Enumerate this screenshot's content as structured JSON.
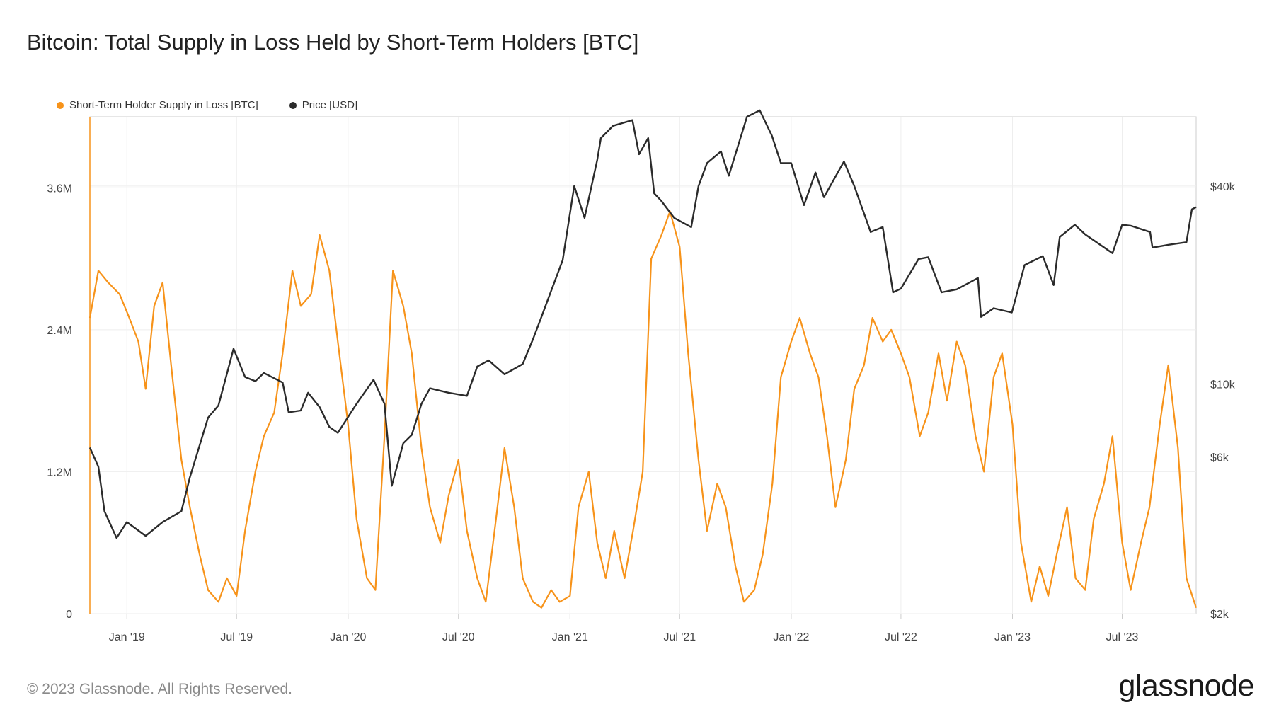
{
  "title": "Bitcoin: Total Supply in Loss Held by Short-Term Holders [BTC]",
  "footer": "© 2023 Glassnode. All Rights Reserved.",
  "brand": "glassnode",
  "colors": {
    "supply": "#f7931a",
    "price": "#2b2b2b",
    "grid": "#eeeeee",
    "axis": "#cccccc"
  },
  "chart_data": {
    "type": "line",
    "legend_position": "top-left",
    "grid": true,
    "x_range": [
      "2018-11-01",
      "2023-10-31"
    ],
    "x_ticks": [
      {
        "date": "2019-01-01",
        "label": "Jan '19"
      },
      {
        "date": "2019-07-01",
        "label": "Jul '19"
      },
      {
        "date": "2020-01-01",
        "label": "Jan '20"
      },
      {
        "date": "2020-07-01",
        "label": "Jul '20"
      },
      {
        "date": "2021-01-01",
        "label": "Jan '21"
      },
      {
        "date": "2021-07-01",
        "label": "Jul '21"
      },
      {
        "date": "2022-01-01",
        "label": "Jan '22"
      },
      {
        "date": "2022-07-01",
        "label": "Jul '22"
      },
      {
        "date": "2023-01-01",
        "label": "Jan '23"
      },
      {
        "date": "2023-07-01",
        "label": "Jul '23"
      }
    ],
    "y_left": {
      "scale": "linear",
      "range": [
        0,
        4200000
      ],
      "ticks": [
        {
          "value": 0,
          "label": "0"
        },
        {
          "value": 1200000,
          "label": "1.2M"
        },
        {
          "value": 2400000,
          "label": "2.4M"
        },
        {
          "value": 3600000,
          "label": "3.6M"
        }
      ]
    },
    "y_right": {
      "scale": "log",
      "range": [
        2000,
        65000
      ],
      "ticks": [
        {
          "value": 2000,
          "label": "$2k"
        },
        {
          "value": 6000,
          "label": "$6k"
        },
        {
          "value": 10000,
          "label": "$10k"
        },
        {
          "value": 40000,
          "label": "$40k"
        }
      ]
    },
    "series": [
      {
        "name": "Short-Term Holder Supply in Loss [BTC]",
        "axis": "left",
        "color": "#f7931a",
        "points": [
          [
            "2018-11-01",
            2500000
          ],
          [
            "2018-11-15",
            2900000
          ],
          [
            "2018-12-01",
            2800000
          ],
          [
            "2018-12-20",
            2700000
          ],
          [
            "2019-01-05",
            2500000
          ],
          [
            "2019-01-20",
            2300000
          ],
          [
            "2019-02-01",
            1900000
          ],
          [
            "2019-02-15",
            2600000
          ],
          [
            "2019-03-01",
            2800000
          ],
          [
            "2019-03-15",
            2100000
          ],
          [
            "2019-04-01",
            1300000
          ],
          [
            "2019-04-15",
            900000
          ],
          [
            "2019-05-01",
            500000
          ],
          [
            "2019-05-15",
            200000
          ],
          [
            "2019-06-01",
            100000
          ],
          [
            "2019-06-15",
            300000
          ],
          [
            "2019-07-01",
            150000
          ],
          [
            "2019-07-15",
            700000
          ],
          [
            "2019-08-01",
            1200000
          ],
          [
            "2019-08-15",
            1500000
          ],
          [
            "2019-09-01",
            1700000
          ],
          [
            "2019-09-15",
            2200000
          ],
          [
            "2019-10-01",
            2900000
          ],
          [
            "2019-10-15",
            2600000
          ],
          [
            "2019-11-01",
            2700000
          ],
          [
            "2019-11-15",
            3200000
          ],
          [
            "2019-12-01",
            2900000
          ],
          [
            "2019-12-15",
            2300000
          ],
          [
            "2020-01-01",
            1600000
          ],
          [
            "2020-01-15",
            800000
          ],
          [
            "2020-02-01",
            300000
          ],
          [
            "2020-02-15",
            200000
          ],
          [
            "2020-03-01",
            1500000
          ],
          [
            "2020-03-15",
            2900000
          ],
          [
            "2020-04-01",
            2600000
          ],
          [
            "2020-04-15",
            2200000
          ],
          [
            "2020-05-01",
            1400000
          ],
          [
            "2020-05-15",
            900000
          ],
          [
            "2020-06-01",
            600000
          ],
          [
            "2020-06-15",
            1000000
          ],
          [
            "2020-07-01",
            1300000
          ],
          [
            "2020-07-15",
            700000
          ],
          [
            "2020-08-01",
            300000
          ],
          [
            "2020-08-15",
            100000
          ],
          [
            "2020-09-01",
            800000
          ],
          [
            "2020-09-15",
            1400000
          ],
          [
            "2020-10-01",
            900000
          ],
          [
            "2020-10-15",
            300000
          ],
          [
            "2020-11-01",
            100000
          ],
          [
            "2020-11-15",
            50000
          ],
          [
            "2020-12-01",
            200000
          ],
          [
            "2020-12-15",
            100000
          ],
          [
            "2021-01-01",
            150000
          ],
          [
            "2021-01-15",
            900000
          ],
          [
            "2021-02-01",
            1200000
          ],
          [
            "2021-02-15",
            600000
          ],
          [
            "2021-03-01",
            300000
          ],
          [
            "2021-03-15",
            700000
          ],
          [
            "2021-04-01",
            300000
          ],
          [
            "2021-04-15",
            700000
          ],
          [
            "2021-05-01",
            1200000
          ],
          [
            "2021-05-15",
            3000000
          ],
          [
            "2021-06-01",
            3200000
          ],
          [
            "2021-06-15",
            3400000
          ],
          [
            "2021-07-01",
            3100000
          ],
          [
            "2021-07-15",
            2200000
          ],
          [
            "2021-08-01",
            1300000
          ],
          [
            "2021-08-15",
            700000
          ],
          [
            "2021-09-01",
            1100000
          ],
          [
            "2021-09-15",
            900000
          ],
          [
            "2021-10-01",
            400000
          ],
          [
            "2021-10-15",
            100000
          ],
          [
            "2021-11-01",
            200000
          ],
          [
            "2021-11-15",
            500000
          ],
          [
            "2021-12-01",
            1100000
          ],
          [
            "2021-12-15",
            2000000
          ],
          [
            "2022-01-01",
            2300000
          ],
          [
            "2022-01-15",
            2500000
          ],
          [
            "2022-02-01",
            2200000
          ],
          [
            "2022-02-15",
            2000000
          ],
          [
            "2022-03-01",
            1500000
          ],
          [
            "2022-03-15",
            900000
          ],
          [
            "2022-04-01",
            1300000
          ],
          [
            "2022-04-15",
            1900000
          ],
          [
            "2022-05-01",
            2100000
          ],
          [
            "2022-05-15",
            2500000
          ],
          [
            "2022-06-01",
            2300000
          ],
          [
            "2022-06-15",
            2400000
          ],
          [
            "2022-07-01",
            2200000
          ],
          [
            "2022-07-15",
            2000000
          ],
          [
            "2022-08-01",
            1500000
          ],
          [
            "2022-08-15",
            1700000
          ],
          [
            "2022-09-01",
            2200000
          ],
          [
            "2022-09-15",
            1800000
          ],
          [
            "2022-10-01",
            2300000
          ],
          [
            "2022-10-15",
            2100000
          ],
          [
            "2022-11-01",
            1500000
          ],
          [
            "2022-11-15",
            1200000
          ],
          [
            "2022-12-01",
            2000000
          ],
          [
            "2022-12-15",
            2200000
          ],
          [
            "2023-01-01",
            1600000
          ],
          [
            "2023-01-15",
            600000
          ],
          [
            "2023-02-01",
            100000
          ],
          [
            "2023-02-15",
            400000
          ],
          [
            "2023-03-01",
            150000
          ],
          [
            "2023-03-15",
            500000
          ],
          [
            "2023-04-01",
            900000
          ],
          [
            "2023-04-15",
            300000
          ],
          [
            "2023-05-01",
            200000
          ],
          [
            "2023-05-15",
            800000
          ],
          [
            "2023-06-01",
            1100000
          ],
          [
            "2023-06-15",
            1500000
          ],
          [
            "2023-07-01",
            600000
          ],
          [
            "2023-07-15",
            200000
          ],
          [
            "2023-08-01",
            600000
          ],
          [
            "2023-08-15",
            900000
          ],
          [
            "2023-09-01",
            1600000
          ],
          [
            "2023-09-15",
            2100000
          ],
          [
            "2023-10-01",
            1400000
          ],
          [
            "2023-10-15",
            300000
          ],
          [
            "2023-10-31",
            50000
          ]
        ]
      },
      {
        "name": "Price [USD]",
        "axis": "right",
        "color": "#2b2b2b",
        "points": [
          [
            "2018-11-01",
            6400
          ],
          [
            "2018-11-15",
            5600
          ],
          [
            "2018-11-25",
            4100
          ],
          [
            "2018-12-15",
            3400
          ],
          [
            "2019-01-01",
            3800
          ],
          [
            "2019-02-01",
            3450
          ],
          [
            "2019-03-01",
            3800
          ],
          [
            "2019-04-01",
            4100
          ],
          [
            "2019-04-15",
            5200
          ],
          [
            "2019-05-15",
            7900
          ],
          [
            "2019-06-01",
            8600
          ],
          [
            "2019-06-26",
            12800
          ],
          [
            "2019-07-15",
            10500
          ],
          [
            "2019-08-01",
            10200
          ],
          [
            "2019-08-15",
            10800
          ],
          [
            "2019-09-15",
            10100
          ],
          [
            "2019-09-25",
            8200
          ],
          [
            "2019-10-15",
            8300
          ],
          [
            "2019-10-27",
            9400
          ],
          [
            "2019-11-15",
            8500
          ],
          [
            "2019-12-01",
            7400
          ],
          [
            "2019-12-15",
            7100
          ],
          [
            "2020-01-15",
            8700
          ],
          [
            "2020-02-12",
            10300
          ],
          [
            "2020-03-01",
            8700
          ],
          [
            "2020-03-13",
            4900
          ],
          [
            "2020-04-01",
            6600
          ],
          [
            "2020-04-15",
            7000
          ],
          [
            "2020-05-01",
            8700
          ],
          [
            "2020-05-15",
            9700
          ],
          [
            "2020-06-15",
            9400
          ],
          [
            "2020-07-15",
            9200
          ],
          [
            "2020-08-01",
            11300
          ],
          [
            "2020-08-20",
            11800
          ],
          [
            "2020-09-15",
            10700
          ],
          [
            "2020-10-15",
            11500
          ],
          [
            "2020-11-01",
            13700
          ],
          [
            "2020-11-15",
            16000
          ],
          [
            "2020-12-01",
            19200
          ],
          [
            "2020-12-20",
            23800
          ],
          [
            "2021-01-08",
            40000
          ],
          [
            "2021-01-25",
            32000
          ],
          [
            "2021-02-15",
            48000
          ],
          [
            "2021-02-21",
            56000
          ],
          [
            "2021-03-13",
            61000
          ],
          [
            "2021-04-14",
            63500
          ],
          [
            "2021-04-25",
            50000
          ],
          [
            "2021-05-10",
            56000
          ],
          [
            "2021-05-20",
            38000
          ],
          [
            "2021-06-01",
            36000
          ],
          [
            "2021-06-22",
            32000
          ],
          [
            "2021-07-20",
            30000
          ],
          [
            "2021-08-01",
            40000
          ],
          [
            "2021-08-15",
            47000
          ],
          [
            "2021-09-07",
            51000
          ],
          [
            "2021-09-20",
            43000
          ],
          [
            "2021-10-20",
            65000
          ],
          [
            "2021-11-10",
            68000
          ],
          [
            "2021-11-30",
            57000
          ],
          [
            "2021-12-15",
            47000
          ],
          [
            "2022-01-01",
            47000
          ],
          [
            "2022-01-22",
            35000
          ],
          [
            "2022-02-10",
            44000
          ],
          [
            "2022-02-24",
            37000
          ],
          [
            "2022-03-29",
            47500
          ],
          [
            "2022-04-15",
            40000
          ],
          [
            "2022-05-12",
            29000
          ],
          [
            "2022-06-01",
            30000
          ],
          [
            "2022-06-18",
            19000
          ],
          [
            "2022-07-01",
            19500
          ],
          [
            "2022-07-30",
            24000
          ],
          [
            "2022-08-15",
            24300
          ],
          [
            "2022-09-06",
            19000
          ],
          [
            "2022-10-01",
            19400
          ],
          [
            "2022-11-05",
            21000
          ],
          [
            "2022-11-10",
            16000
          ],
          [
            "2022-12-01",
            17000
          ],
          [
            "2022-12-31",
            16500
          ],
          [
            "2023-01-21",
            23000
          ],
          [
            "2023-02-20",
            24500
          ],
          [
            "2023-03-10",
            20000
          ],
          [
            "2023-03-20",
            28000
          ],
          [
            "2023-04-14",
            30500
          ],
          [
            "2023-05-01",
            28500
          ],
          [
            "2023-06-15",
            25000
          ],
          [
            "2023-07-01",
            30500
          ],
          [
            "2023-07-15",
            30300
          ],
          [
            "2023-08-16",
            29000
          ],
          [
            "2023-08-20",
            26000
          ],
          [
            "2023-09-15",
            26500
          ],
          [
            "2023-10-15",
            27000
          ],
          [
            "2023-10-24",
            34000
          ],
          [
            "2023-10-31",
            34500
          ]
        ]
      }
    ]
  }
}
